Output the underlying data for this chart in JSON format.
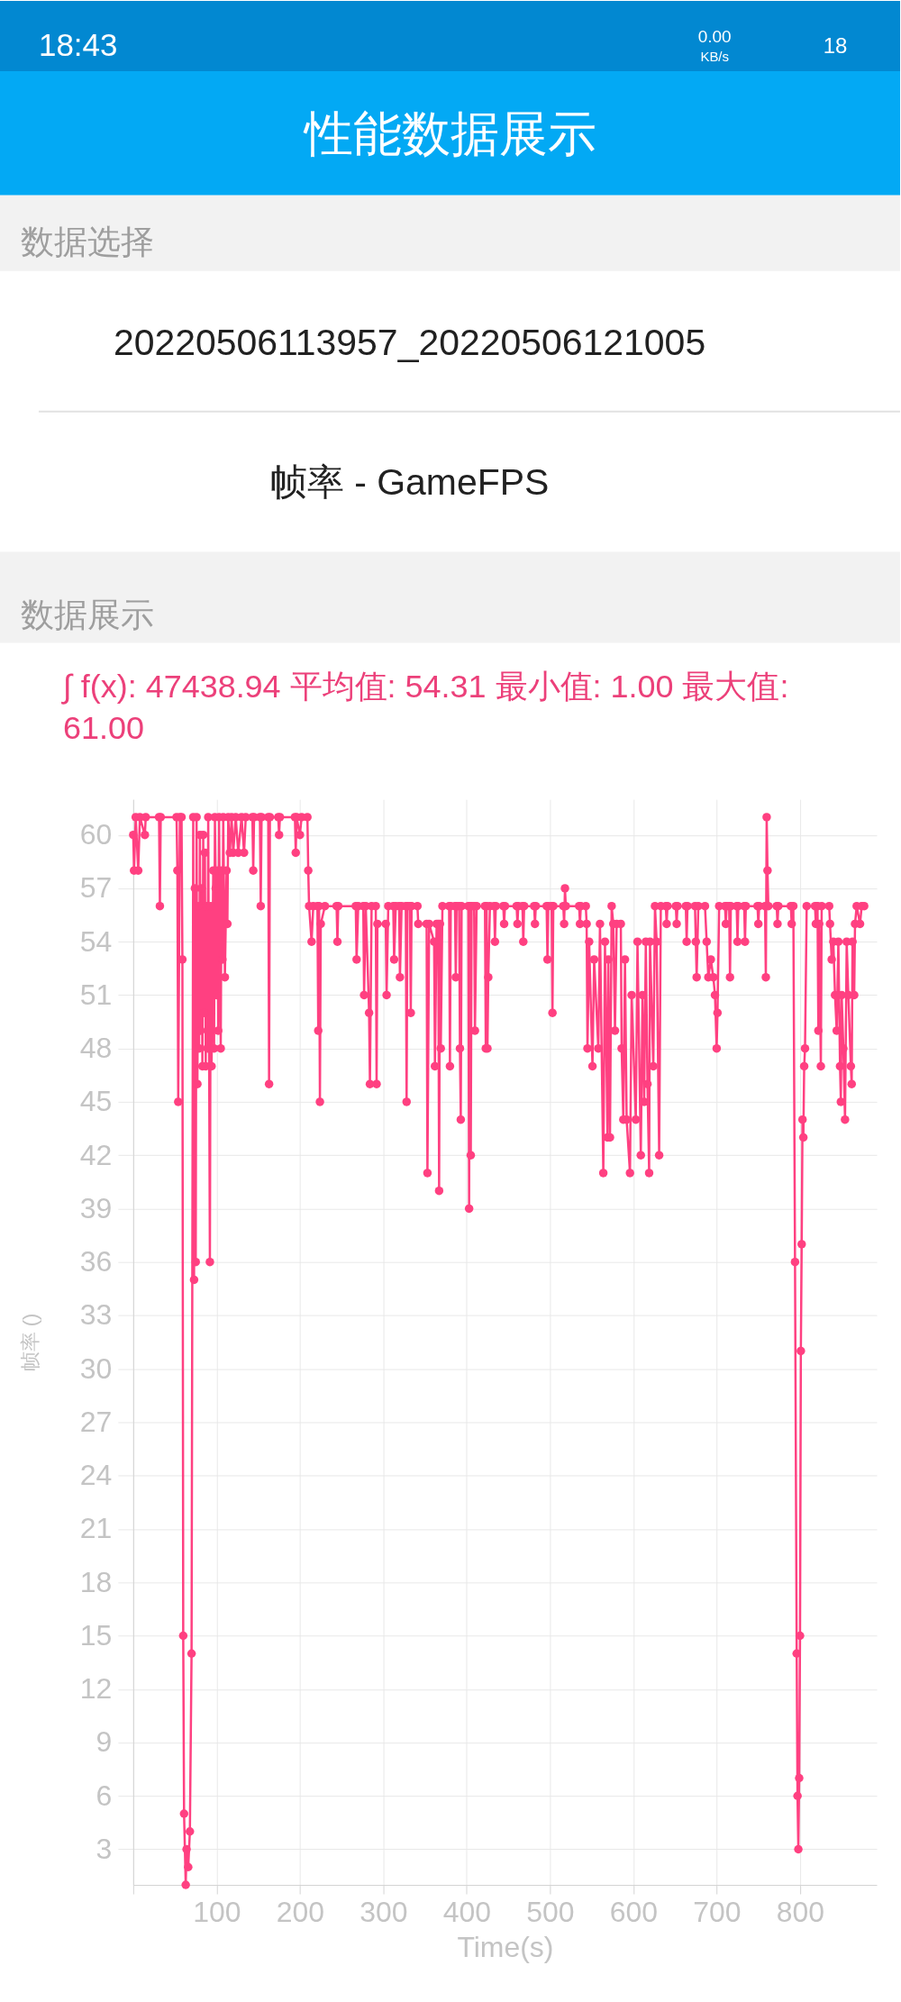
{
  "chart_data": {
    "type": "line",
    "title": "性能数据展示",
    "subtitle": "∫ f(x): 47438.94 平均值: 54.31 最小值: 1.00 最大值: 61.00",
    "annotations": [
      "18:43",
      "0.00",
      "KB/s",
      "18",
      "数据选择",
      "20220506113957_20220506121005",
      "帧率 - GameFPS",
      "数据展示"
    ],
    "xlabel": "Time(s)",
    "ylabel": "帧率 ()",
    "color": "#ff4081",
    "marker": "circle",
    "line_style": "solid",
    "grid": true,
    "xlim": [
      0,
      892
    ],
    "ylim": [
      1,
      62
    ],
    "xticks": [
      {
        "value": 0,
        "label": null
      },
      100,
      200,
      300,
      400,
      500,
      600,
      700,
      800
    ],
    "yticks": [
      3,
      6,
      9,
      12,
      15,
      18,
      21,
      24,
      27,
      30,
      33,
      36,
      39,
      42,
      45,
      48,
      51,
      54,
      57,
      60
    ],
    "x": [
      0,
      1,
      3,
      6,
      8,
      14,
      15,
      31,
      32,
      33,
      52,
      53,
      54,
      56,
      58,
      59,
      60,
      61,
      63,
      64,
      66,
      68,
      70,
      72,
      73,
      74,
      75,
      76,
      77,
      78,
      79,
      80,
      81,
      82,
      83,
      84,
      85,
      86,
      87,
      88,
      89,
      90,
      92,
      93,
      94,
      96,
      97,
      98,
      99,
      100,
      101,
      102,
      103,
      105,
      106,
      107,
      108,
      110,
      112,
      113,
      114,
      116,
      118,
      120,
      123,
      126,
      130,
      133,
      135,
      143,
      144,
      145,
      152,
      153,
      154,
      162,
      163,
      164,
      174,
      175,
      176,
      194,
      195,
      196,
      200,
      202,
      209,
      210,
      211,
      214,
      216,
      221,
      222,
      223,
      224,
      225,
      230,
      244,
      245,
      246,
      267,
      268,
      270,
      276,
      277,
      279,
      283,
      284,
      286,
      291,
      292,
      293,
      303,
      304,
      306,
      312,
      313,
      315,
      319,
      320,
      322,
      327,
      328,
      329,
      332,
      333,
      334,
      341,
      342,
      352,
      353,
      355,
      361,
      362,
      364,
      366,
      367,
      368,
      369,
      371,
      379,
      380,
      381,
      386,
      387,
      388,
      391,
      392,
      393,
      394,
      402,
      403,
      404,
      405,
      406,
      409,
      410,
      412,
      422,
      423,
      424,
      425,
      426,
      428,
      433,
      434,
      435,
      444,
      445,
      446,
      460,
      461,
      462,
      467,
      468,
      469,
      481,
      482,
      483,
      496,
      497,
      498,
      502,
      503,
      504,
      516,
      517,
      518,
      519,
      535,
      536,
      537,
      543,
      544,
      545,
      547,
      551,
      553,
      558,
      560,
      564,
      566,
      569,
      570,
      572,
      574,
      576,
      578,
      580,
      585,
      586,
      588,
      590,
      592,
      596,
      598,
      603,
      605,
      609,
      611,
      613,
      615,
      617,
      619,
      620,
      624,
      626,
      628,
      631,
      633,
      639,
      640,
      641,
      651,
      652,
      653,
      663,
      664,
      665,
      674,
      675,
      676,
      678,
      686,
      688,
      690,
      693,
      696,
      698,
      700,
      701,
      703,
      710,
      711,
      712,
      715,
      716,
      717,
      724,
      725,
      726,
      733,
      734,
      735,
      749,
      750,
      751,
      758,
      759,
      760,
      761,
      762,
      772,
      773,
      774,
      789,
      790,
      792,
      794,
      796,
      797,
      798,
      799,
      800,
      801,
      802,
      803,
      804,
      805,
      806,
      808,
      818,
      819,
      820,
      821,
      822,
      823,
      825,
      826,
      835,
      836,
      838,
      840,
      842,
      844,
      846,
      848,
      849,
      850,
      852,
      854,
      856,
      858,
      861,
      862,
      863,
      865,
      866,
      868,
      872,
      874,
      877
    ],
    "values": [
      60,
      58,
      61,
      58,
      61,
      60,
      61,
      61,
      56,
      61,
      61,
      58,
      45,
      61,
      61,
      53,
      15,
      5,
      1,
      3,
      2,
      4,
      14,
      61,
      35,
      57,
      36,
      61,
      46,
      56,
      48,
      60,
      49,
      57,
      47,
      60,
      50,
      59,
      47,
      56,
      48,
      61,
      36,
      56,
      47,
      58,
      48,
      61,
      57,
      51,
      58,
      49,
      61,
      48,
      58,
      53,
      61,
      52,
      58,
      55,
      61,
      59,
      61,
      59,
      61,
      59,
      61,
      59,
      61,
      61,
      58,
      61,
      61,
      56,
      61,
      61,
      46,
      61,
      61,
      60,
      61,
      61,
      59,
      61,
      60,
      61,
      61,
      58,
      56,
      54,
      56,
      56,
      49,
      56,
      45,
      55,
      56,
      56,
      54,
      56,
      56,
      53,
      56,
      56,
      51,
      56,
      50,
      46,
      56,
      56,
      46,
      55,
      55,
      51,
      56,
      56,
      53,
      56,
      56,
      52,
      56,
      56,
      45,
      56,
      56,
      50,
      56,
      56,
      55,
      55,
      41,
      55,
      54,
      47,
      55,
      55,
      40,
      55,
      48,
      56,
      56,
      47,
      56,
      56,
      52,
      56,
      56,
      48,
      44,
      56,
      56,
      39,
      56,
      42,
      56,
      56,
      49,
      56,
      56,
      48,
      56,
      48,
      52,
      56,
      56,
      54,
      56,
      56,
      55,
      56,
      56,
      55,
      56,
      56,
      54,
      56,
      56,
      55,
      56,
      56,
      53,
      56,
      56,
      50,
      56,
      56,
      55,
      57,
      56,
      56,
      55,
      56,
      56,
      55,
      48,
      54,
      47,
      53,
      48,
      55,
      41,
      54,
      43,
      53,
      43,
      56,
      55,
      49,
      55,
      55,
      48,
      44,
      53,
      44,
      41,
      51,
      44,
      54,
      42,
      51,
      45,
      54,
      46,
      41,
      54,
      47,
      56,
      54,
      42,
      56,
      56,
      55,
      56,
      56,
      55,
      56,
      56,
      54,
      56,
      56,
      54,
      52,
      56,
      56,
      54,
      52,
      53,
      52,
      51,
      48,
      50,
      56,
      56,
      55,
      56,
      56,
      52,
      56,
      56,
      54,
      56,
      56,
      54,
      56,
      56,
      55,
      56,
      56,
      52,
      61,
      58,
      56,
      56,
      55,
      56,
      56,
      55,
      56,
      36,
      14,
      6,
      3,
      7,
      15,
      31,
      37,
      44,
      43,
      47,
      48,
      56,
      56,
      55,
      56,
      56,
      49,
      55,
      47,
      56,
      56,
      55,
      53,
      54,
      51,
      49,
      54,
      47,
      45,
      51,
      48,
      44,
      54,
      51,
      47,
      46,
      54,
      51,
      55,
      56,
      55,
      56,
      56
    ]
  }
}
